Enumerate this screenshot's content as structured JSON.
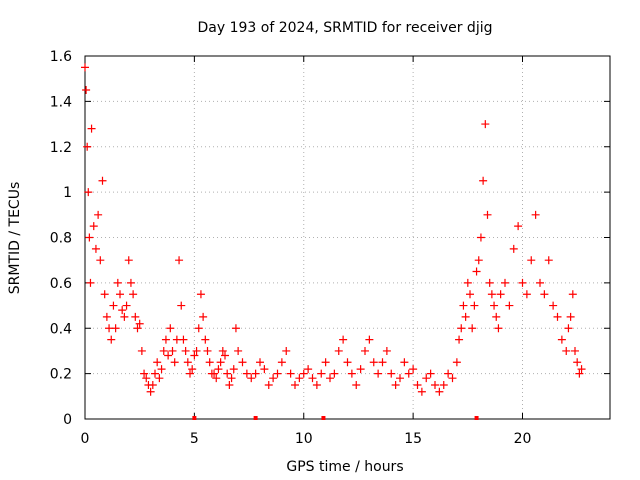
{
  "chart_data": {
    "type": "scatter",
    "title": "Day 193 of 2024, SRMTID for receiver djig",
    "xlabel": "GPS time / hours",
    "ylabel": "SRMTID / TECUs",
    "xlim": [
      0,
      24
    ],
    "ylim": [
      0,
      1.6
    ],
    "x_ticks": [
      0,
      5,
      10,
      15,
      20
    ],
    "x_tick_labels": [
      "0",
      "5",
      "10",
      "15",
      "20"
    ],
    "y_ticks": [
      0,
      0.2,
      0.4,
      0.6,
      0.8,
      1.0,
      1.2,
      1.4,
      1.6
    ],
    "y_tick_labels": [
      "0",
      "0.2",
      "0.4",
      "0.6",
      "0.8",
      "1",
      "1.2",
      "1.4",
      "1.6"
    ],
    "grid": true,
    "marker": "+",
    "colors": {
      "series": "#ff0000",
      "grid": "#b0b0b0",
      "axis": "#000000"
    },
    "series": [
      {
        "name": "SRMTID",
        "x": [
          0.0,
          0.05,
          0.1,
          0.15,
          0.2,
          0.25,
          0.3,
          0.4,
          0.5,
          0.6,
          0.7,
          0.8,
          0.9,
          1.0,
          1.1,
          1.2,
          1.3,
          1.4,
          1.5,
          1.6,
          1.7,
          1.8,
          1.9,
          2.0,
          2.1,
          2.2,
          2.3,
          2.4,
          2.5,
          2.6,
          2.7,
          2.8,
          2.9,
          3.0,
          3.1,
          3.2,
          3.3,
          3.4,
          3.5,
          3.6,
          3.7,
          3.8,
          3.9,
          4.0,
          4.1,
          4.2,
          4.3,
          4.4,
          4.5,
          4.6,
          4.7,
          4.8,
          4.9,
          5.0,
          5.1,
          5.2,
          5.3,
          5.4,
          5.5,
          5.6,
          5.7,
          5.8,
          5.9,
          6.0,
          6.1,
          6.2,
          6.3,
          6.4,
          6.5,
          6.6,
          6.7,
          6.8,
          6.9,
          7.0,
          7.2,
          7.4,
          7.6,
          7.8,
          8.0,
          8.2,
          8.4,
          8.6,
          8.8,
          9.0,
          9.2,
          9.4,
          9.6,
          9.8,
          10.0,
          10.2,
          10.4,
          10.6,
          10.8,
          11.0,
          11.2,
          11.4,
          11.6,
          11.8,
          12.0,
          12.2,
          12.4,
          12.6,
          12.8,
          13.0,
          13.2,
          13.4,
          13.6,
          13.8,
          14.0,
          14.2,
          14.4,
          14.6,
          14.8,
          15.0,
          15.2,
          15.4,
          15.6,
          15.8,
          16.0,
          16.2,
          16.4,
          16.6,
          16.8,
          17.0,
          17.1,
          17.2,
          17.3,
          17.4,
          17.5,
          17.6,
          17.7,
          17.8,
          17.9,
          18.0,
          18.1,
          18.2,
          18.3,
          18.4,
          18.5,
          18.6,
          18.7,
          18.8,
          18.9,
          19.0,
          19.2,
          19.4,
          19.6,
          19.8,
          20.0,
          20.2,
          20.4,
          20.6,
          20.8,
          21.0,
          21.2,
          21.4,
          21.6,
          21.8,
          22.0,
          22.1,
          22.2,
          22.3,
          22.4,
          22.5,
          22.6,
          22.7
        ],
        "y": [
          1.55,
          1.45,
          1.2,
          1.0,
          0.8,
          0.6,
          1.28,
          0.85,
          0.75,
          0.9,
          0.7,
          1.05,
          0.55,
          0.45,
          0.4,
          0.35,
          0.5,
          0.4,
          0.6,
          0.55,
          0.48,
          0.45,
          0.5,
          0.7,
          0.6,
          0.55,
          0.45,
          0.4,
          0.42,
          0.3,
          0.2,
          0.18,
          0.15,
          0.12,
          0.15,
          0.2,
          0.25,
          0.18,
          0.22,
          0.3,
          0.35,
          0.28,
          0.4,
          0.3,
          0.25,
          0.35,
          0.7,
          0.5,
          0.35,
          0.3,
          0.25,
          0.2,
          0.22,
          0.28,
          0.3,
          0.4,
          0.55,
          0.45,
          0.35,
          0.3,
          0.25,
          0.2,
          0.2,
          0.18,
          0.22,
          0.25,
          0.3,
          0.28,
          0.2,
          0.15,
          0.18,
          0.22,
          0.4,
          0.3,
          0.25,
          0.2,
          0.18,
          0.2,
          0.25,
          0.22,
          0.15,
          0.18,
          0.2,
          0.25,
          0.3,
          0.2,
          0.15,
          0.18,
          0.2,
          0.22,
          0.18,
          0.15,
          0.2,
          0.25,
          0.18,
          0.2,
          0.3,
          0.35,
          0.25,
          0.2,
          0.15,
          0.22,
          0.3,
          0.35,
          0.25,
          0.2,
          0.25,
          0.3,
          0.2,
          0.15,
          0.18,
          0.25,
          0.2,
          0.22,
          0.15,
          0.12,
          0.18,
          0.2,
          0.15,
          0.12,
          0.15,
          0.2,
          0.18,
          0.25,
          0.35,
          0.4,
          0.5,
          0.45,
          0.6,
          0.55,
          0.4,
          0.5,
          0.65,
          0.7,
          0.8,
          1.05,
          1.3,
          0.9,
          0.6,
          0.55,
          0.5,
          0.45,
          0.4,
          0.55,
          0.6,
          0.5,
          0.75,
          0.85,
          0.6,
          0.55,
          0.7,
          0.9,
          0.6,
          0.55,
          0.7,
          0.5,
          0.45,
          0.35,
          0.3,
          0.4,
          0.45,
          0.55,
          0.3,
          0.25,
          0.2,
          0.22
        ]
      }
    ],
    "zero_markers_x": [
      5.0,
      7.8,
      10.9,
      17.9
    ]
  }
}
